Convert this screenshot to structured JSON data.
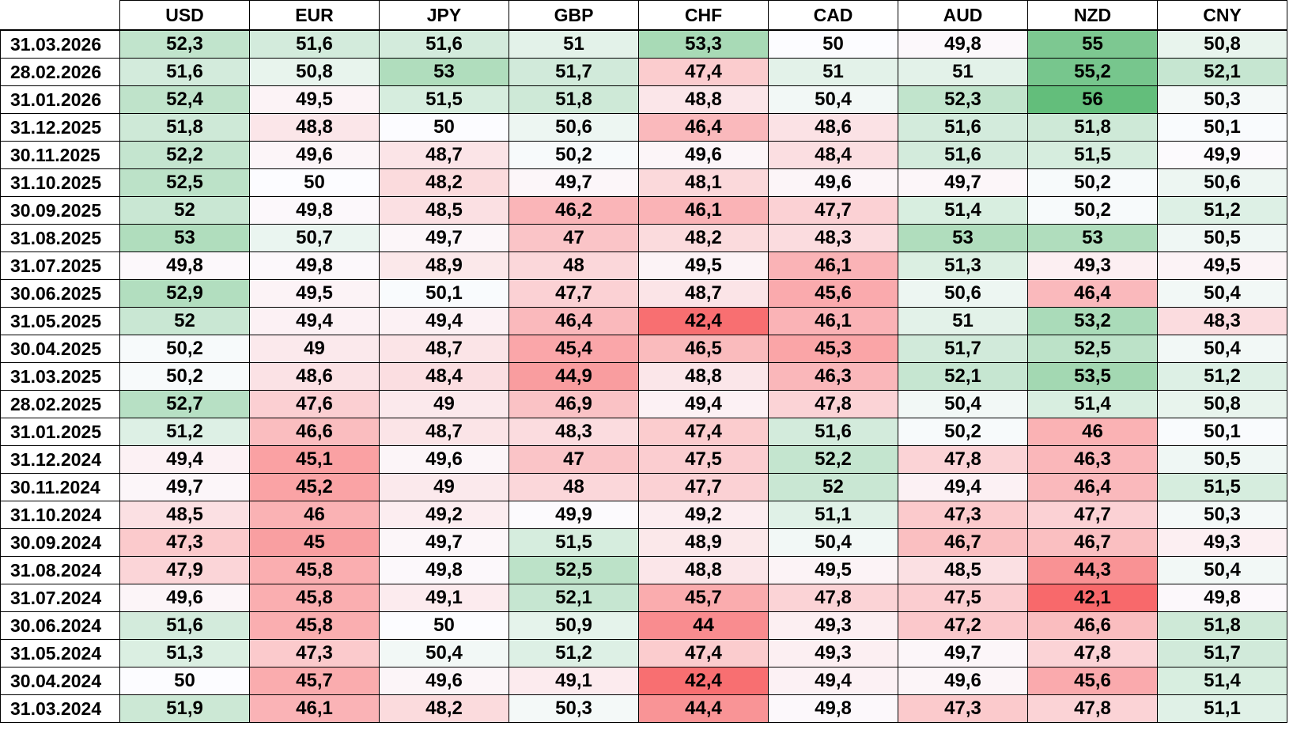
{
  "table": {
    "columns": [
      "USD",
      "EUR",
      "JPY",
      "GBP",
      "CHF",
      "CAD",
      "AUD",
      "NZD",
      "CNY"
    ],
    "colors": {
      "low": "#f8696b",
      "mid": "#fcfcff",
      "high": "#63be7b"
    },
    "color_scale": {
      "min": 42.1,
      "mid": 50,
      "max": 56
    },
    "rows": [
      {
        "date": "31.03.2026",
        "values": [
          "52,3",
          "51,6",
          "51,6",
          "51",
          "53,3",
          "50",
          "49,8",
          "55",
          "50,8"
        ]
      },
      {
        "date": "28.02.2026",
        "values": [
          "51,6",
          "50,8",
          "53",
          "51,7",
          "47,4",
          "51",
          "51",
          "55,2",
          "52,1"
        ]
      },
      {
        "date": "31.01.2026",
        "values": [
          "52,4",
          "49,5",
          "51,5",
          "51,8",
          "48,8",
          "50,4",
          "52,3",
          "56",
          "50,3"
        ]
      },
      {
        "date": "31.12.2025",
        "values": [
          "51,8",
          "48,8",
          "50",
          "50,6",
          "46,4",
          "48,6",
          "51,6",
          "51,8",
          "50,1"
        ]
      },
      {
        "date": "30.11.2025",
        "values": [
          "52,2",
          "49,6",
          "48,7",
          "50,2",
          "49,6",
          "48,4",
          "51,6",
          "51,5",
          "49,9"
        ]
      },
      {
        "date": "31.10.2025",
        "values": [
          "52,5",
          "50",
          "48,2",
          "49,7",
          "48,1",
          "49,6",
          "49,7",
          "50,2",
          "50,6"
        ]
      },
      {
        "date": "30.09.2025",
        "values": [
          "52",
          "49,8",
          "48,5",
          "46,2",
          "46,1",
          "47,7",
          "51,4",
          "50,2",
          "51,2"
        ]
      },
      {
        "date": "31.08.2025",
        "values": [
          "53",
          "50,7",
          "49,7",
          "47",
          "48,2",
          "48,3",
          "53",
          "53",
          "50,5"
        ]
      },
      {
        "date": "31.07.2025",
        "values": [
          "49,8",
          "49,8",
          "48,9",
          "48",
          "49,5",
          "46,1",
          "51,3",
          "49,3",
          "49,5"
        ]
      },
      {
        "date": "30.06.2025",
        "values": [
          "52,9",
          "49,5",
          "50,1",
          "47,7",
          "48,7",
          "45,6",
          "50,6",
          "46,4",
          "50,4"
        ]
      },
      {
        "date": "31.05.2025",
        "values": [
          "52",
          "49,4",
          "49,4",
          "46,4",
          "42,4",
          "46,1",
          "51",
          "53,2",
          "48,3"
        ]
      },
      {
        "date": "30.04.2025",
        "values": [
          "50,2",
          "49",
          "48,7",
          "45,4",
          "46,5",
          "45,3",
          "51,7",
          "52,5",
          "50,4"
        ]
      },
      {
        "date": "31.03.2025",
        "values": [
          "50,2",
          "48,6",
          "48,4",
          "44,9",
          "48,8",
          "46,3",
          "52,1",
          "53,5",
          "51,2"
        ]
      },
      {
        "date": "28.02.2025",
        "values": [
          "52,7",
          "47,6",
          "49",
          "46,9",
          "49,4",
          "47,8",
          "50,4",
          "51,4",
          "50,8"
        ]
      },
      {
        "date": "31.01.2025",
        "values": [
          "51,2",
          "46,6",
          "48,7",
          "48,3",
          "47,4",
          "51,6",
          "50,2",
          "46",
          "50,1"
        ]
      },
      {
        "date": "31.12.2024",
        "values": [
          "49,4",
          "45,1",
          "49,6",
          "47",
          "47,5",
          "52,2",
          "47,8",
          "46,3",
          "50,5"
        ]
      },
      {
        "date": "30.11.2024",
        "values": [
          "49,7",
          "45,2",
          "49",
          "48",
          "47,7",
          "52",
          "49,4",
          "46,4",
          "51,5"
        ]
      },
      {
        "date": "31.10.2024",
        "values": [
          "48,5",
          "46",
          "49,2",
          "49,9",
          "49,2",
          "51,1",
          "47,3",
          "47,7",
          "50,3"
        ]
      },
      {
        "date": "30.09.2024",
        "values": [
          "47,3",
          "45",
          "49,7",
          "51,5",
          "48,9",
          "50,4",
          "46,7",
          "46,7",
          "49,3"
        ]
      },
      {
        "date": "31.08.2024",
        "values": [
          "47,9",
          "45,8",
          "49,8",
          "52,5",
          "48,8",
          "49,5",
          "48,5",
          "44,3",
          "50,4"
        ]
      },
      {
        "date": "31.07.2024",
        "values": [
          "49,6",
          "45,8",
          "49,1",
          "52,1",
          "45,7",
          "47,8",
          "47,5",
          "42,1",
          "49,8"
        ]
      },
      {
        "date": "30.06.2024",
        "values": [
          "51,6",
          "45,8",
          "50",
          "50,9",
          "44",
          "49,3",
          "47,2",
          "46,6",
          "51,8"
        ]
      },
      {
        "date": "31.05.2024",
        "values": [
          "51,3",
          "47,3",
          "50,4",
          "51,2",
          "47,4",
          "49,3",
          "49,7",
          "47,8",
          "51,7"
        ]
      },
      {
        "date": "30.04.2024",
        "values": [
          "50",
          "45,7",
          "49,6",
          "49,1",
          "42,4",
          "49,4",
          "49,6",
          "45,6",
          "51,4"
        ]
      },
      {
        "date": "31.03.2024",
        "values": [
          "51,9",
          "46,1",
          "48,2",
          "50,3",
          "44,4",
          "49,8",
          "47,3",
          "47,8",
          "51,1"
        ]
      }
    ]
  }
}
